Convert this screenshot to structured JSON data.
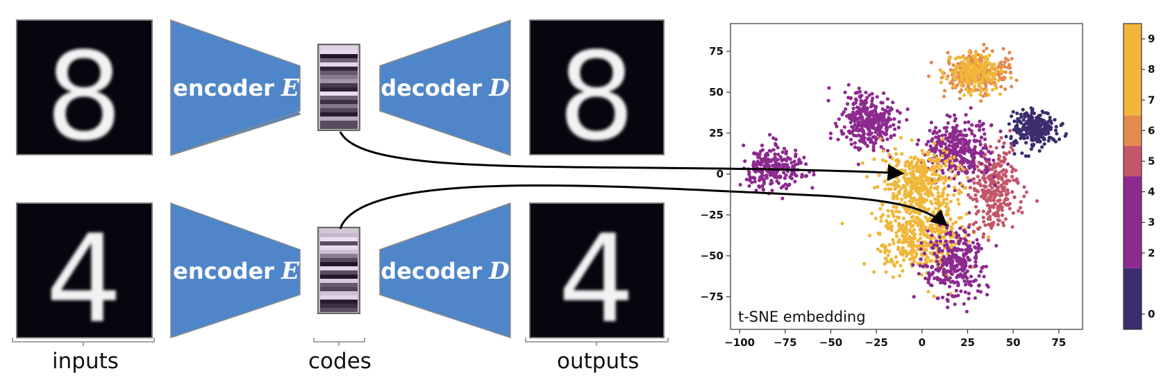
{
  "labels": {
    "inputs": "inputs",
    "codes": "codes",
    "outputs": "outputs",
    "embedding": "t-SNE embedding"
  },
  "encoder": {
    "text": "encoder",
    "var": "E"
  },
  "decoder": {
    "text": "decoder",
    "var": "D"
  },
  "digits": {
    "top": "8",
    "bottom": "4"
  },
  "colors": {
    "block_fill": "#4f86c9",
    "block_stroke": "#8a8a8a",
    "image_bg": "#06060f",
    "digit": "#f2f2f2"
  },
  "chart_data": {
    "type": "scatter",
    "title": "",
    "xlabel": "",
    "ylabel": "",
    "xlim": [
      -105,
      88
    ],
    "ylim": [
      -95,
      92
    ],
    "xticks": [
      -100,
      -75,
      -50,
      -25,
      0,
      25,
      50,
      75
    ],
    "yticks": [
      75,
      50,
      25,
      0,
      -25,
      -50,
      -75
    ],
    "grid": false,
    "colorbar": {
      "ticks": [
        0,
        2,
        3,
        4,
        5,
        6,
        7,
        8,
        9
      ],
      "bands": [
        {
          "from": -0.5,
          "to": 1.5,
          "color": "#3b2d6e"
        },
        {
          "from": 1.5,
          "to": 4.5,
          "color": "#8d2a8f"
        },
        {
          "from": 4.5,
          "to": 5.5,
          "color": "#c4566a"
        },
        {
          "from": 5.5,
          "to": 6.5,
          "color": "#e48a4f"
        },
        {
          "from": 6.5,
          "to": 9.5,
          "color": "#f0b73a"
        }
      ]
    },
    "clusters": [
      {
        "label": "0",
        "color": "#3b2d6e",
        "cx": 62,
        "cy": 28,
        "rx": 12,
        "ry": 11,
        "n": 260
      },
      {
        "label": "1",
        "color": "#f0b73a",
        "cx": -2,
        "cy": -38,
        "rx": 24,
        "ry": 22,
        "n": 420
      },
      {
        "label": "2",
        "color": "#8d2a8f",
        "cx": -30,
        "cy": 32,
        "rx": 15,
        "ry": 18,
        "n": 330
      },
      {
        "label": "3",
        "color": "#8d2a8f",
        "cx": 18,
        "cy": -55,
        "rx": 17,
        "ry": 20,
        "n": 300
      },
      {
        "label": "4",
        "color": "#8d2a8f",
        "cx": -82,
        "cy": 4,
        "rx": 17,
        "ry": 12,
        "n": 260
      },
      {
        "label": "5",
        "color": "#c4566a",
        "cx": 40,
        "cy": -10,
        "rx": 13,
        "ry": 22,
        "n": 280
      },
      {
        "label": "6",
        "color": "#e48a4f",
        "cx": 30,
        "cy": 62,
        "rx": 18,
        "ry": 12,
        "n": 280
      },
      {
        "label": "7",
        "color": "#f0b73a",
        "cx": 30,
        "cy": 62,
        "rx": 16,
        "ry": 11,
        "n": 200
      },
      {
        "label": "8",
        "color": "#8d2a8f",
        "cx": 20,
        "cy": 15,
        "rx": 18,
        "ry": 18,
        "n": 340
      },
      {
        "label": "9",
        "color": "#f0b73a",
        "cx": -2,
        "cy": -5,
        "rx": 20,
        "ry": 20,
        "n": 380
      }
    ]
  }
}
